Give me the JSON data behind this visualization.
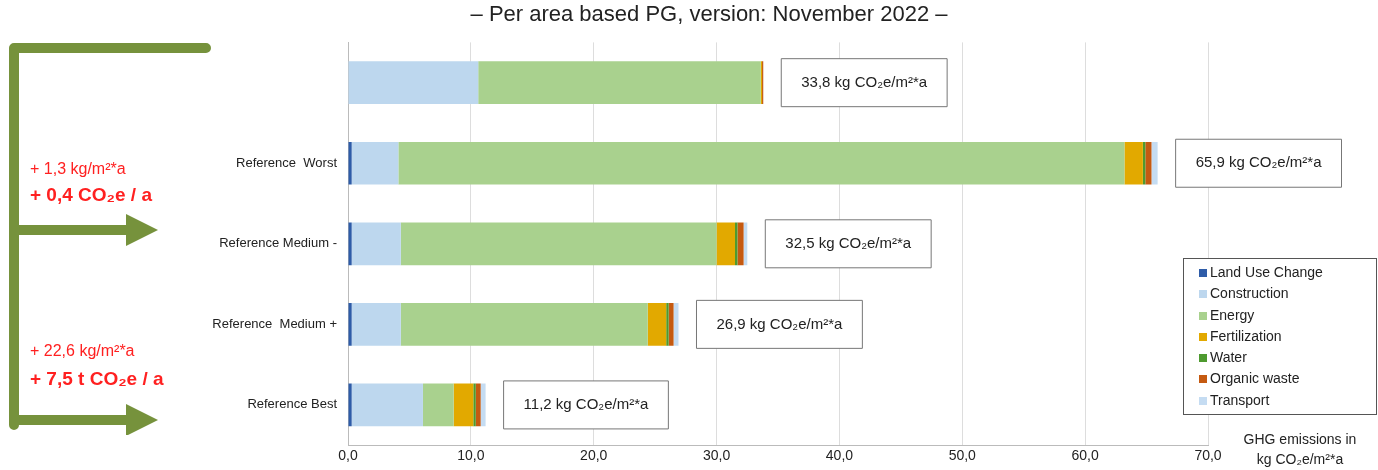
{
  "chart_data": {
    "type": "bar",
    "orientation": "horizontal",
    "stacked": true,
    "title": "– Per area based PG, version: November 2022 –",
    "xlabel": "GHG emissions in kg CO₂e/m²*a",
    "categories": [
      null,
      "Reference  Worst",
      "Reference Medium -",
      "Reference  Medium +",
      "Reference Best"
    ],
    "series": [
      {
        "name": "Land Use Change",
        "color": "#2e5ca8",
        "values": [
          0,
          0.3,
          0.3,
          0.3,
          0.3
        ]
      },
      {
        "name": "Construction",
        "color": "#bdd7ee",
        "values": [
          10.6,
          3.8,
          4.0,
          4.0,
          5.8
        ]
      },
      {
        "name": "Energy",
        "color": "#a9d18e",
        "values": [
          23.0,
          59.1,
          25.7,
          20.1,
          2.5
        ]
      },
      {
        "name": "Fertilization",
        "color": "#e2a900",
        "values": [
          0.1,
          1.5,
          1.5,
          1.5,
          1.6
        ]
      },
      {
        "name": "Water",
        "color": "#4e9a2f",
        "values": [
          0,
          0.2,
          0.2,
          0.2,
          0.2
        ]
      },
      {
        "name": "Organic waste",
        "color": "#c55a11",
        "values": [
          0.1,
          0.5,
          0.5,
          0.4,
          0.4
        ]
      },
      {
        "name": "Transport",
        "color": "#c5dcf2",
        "values": [
          0,
          0.5,
          0.3,
          0.4,
          0.4
        ]
      }
    ],
    "totals": [
      "33,8 kg CO₂e/m²*a",
      "65,9 kg CO₂e/m²*a",
      "32,5 kg CO₂e/m²*a",
      "26,9 kg CO₂e/m²*a",
      "11,2 kg CO₂e/m²*a"
    ],
    "xlim": [
      0,
      70
    ],
    "xticks": [
      {
        "value": 0,
        "label": "0,0"
      },
      {
        "value": 10,
        "label": "10,0"
      },
      {
        "value": 20,
        "label": "20,0"
      },
      {
        "value": 30,
        "label": "30,0"
      },
      {
        "value": 40,
        "label": "40,0"
      },
      {
        "value": 50,
        "label": "50,0"
      },
      {
        "value": 60,
        "label": "60,0"
      },
      {
        "value": 70,
        "label": "70,0"
      }
    ],
    "grid": "x",
    "legend": "bottom right",
    "annotations": [
      "+ 1,3 kg/m²*a",
      "+ 0,4 CO₂e / a",
      "+ 22,6 kg/m²*a",
      "+ 7,5 t CO₂e / a"
    ]
  }
}
